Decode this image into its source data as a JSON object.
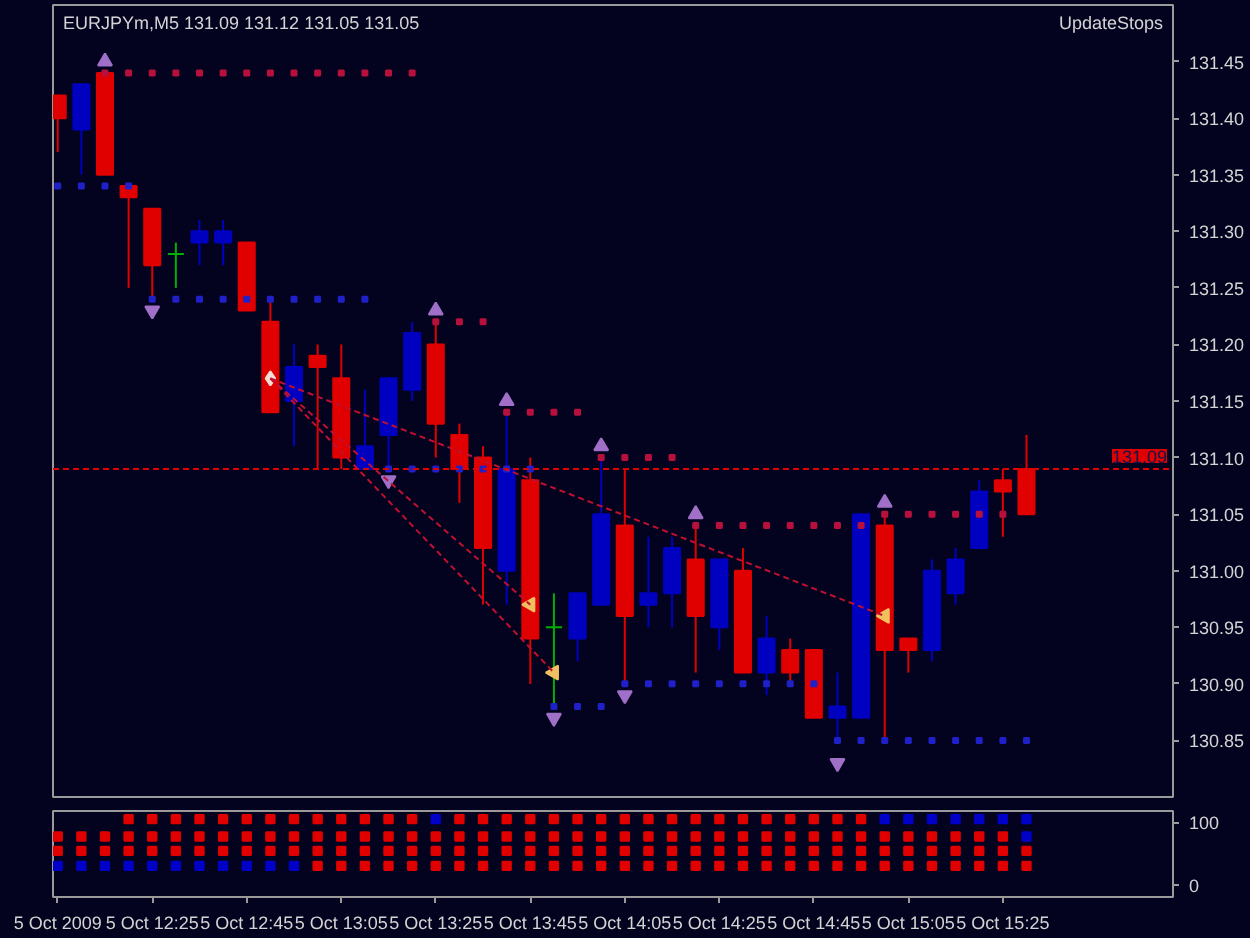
{
  "chart_data": [
    {
      "type": "candlestick",
      "title": "EURJPYm,M5  131.09 131.12 131.05 131.05",
      "x": [
        "2009-10-05T12:05",
        "2009-10-05T12:10",
        "2009-10-05T12:15",
        "2009-10-05T12:20",
        "2009-10-05T12:25",
        "2009-10-05T12:30",
        "2009-10-05T12:35",
        "2009-10-05T12:40",
        "2009-10-05T12:45",
        "2009-10-05T12:50",
        "2009-10-05T12:55",
        "2009-10-05T13:00",
        "2009-10-05T13:05",
        "2009-10-05T13:10",
        "2009-10-05T13:15",
        "2009-10-05T13:20",
        "2009-10-05T13:25",
        "2009-10-05T13:30",
        "2009-10-05T13:35",
        "2009-10-05T13:40",
        "2009-10-05T13:45",
        "2009-10-05T13:50",
        "2009-10-05T13:55",
        "2009-10-05T14:00",
        "2009-10-05T14:05",
        "2009-10-05T14:10",
        "2009-10-05T14:15",
        "2009-10-05T14:20",
        "2009-10-05T14:25",
        "2009-10-05T14:30",
        "2009-10-05T14:35",
        "2009-10-05T14:40",
        "2009-10-05T14:45",
        "2009-10-05T14:50",
        "2009-10-05T14:55",
        "2009-10-05T15:00",
        "2009-10-05T15:05",
        "2009-10-05T15:10",
        "2009-10-05T15:15",
        "2009-10-05T15:20",
        "2009-10-05T15:25",
        "2009-10-05T15:30"
      ],
      "ohlc": [
        [
          131.42,
          131.42,
          131.37,
          131.4
        ],
        [
          131.39,
          131.43,
          131.35,
          131.43
        ],
        [
          131.44,
          131.44,
          131.35,
          131.35
        ],
        [
          131.34,
          131.34,
          131.25,
          131.33
        ],
        [
          131.32,
          131.32,
          131.24,
          131.27
        ],
        [
          131.28,
          131.29,
          131.25,
          131.28
        ],
        [
          131.29,
          131.31,
          131.27,
          131.3
        ],
        [
          131.29,
          131.31,
          131.27,
          131.3
        ],
        [
          131.29,
          131.29,
          131.23,
          131.23
        ],
        [
          131.22,
          131.24,
          131.14,
          131.14
        ],
        [
          131.15,
          131.2,
          131.11,
          131.18
        ],
        [
          131.19,
          131.2,
          131.09,
          131.18
        ],
        [
          131.17,
          131.2,
          131.09,
          131.1
        ],
        [
          131.09,
          131.16,
          131.09,
          131.11
        ],
        [
          131.12,
          131.17,
          131.09,
          131.17
        ],
        [
          131.16,
          131.22,
          131.15,
          131.21
        ],
        [
          131.2,
          131.22,
          131.1,
          131.13
        ],
        [
          131.12,
          131.13,
          131.06,
          131.09
        ],
        [
          131.1,
          131.11,
          130.97,
          131.02
        ],
        [
          131.0,
          131.14,
          130.97,
          131.09
        ],
        [
          131.08,
          131.1,
          130.9,
          130.94
        ],
        [
          130.95,
          130.98,
          130.88,
          130.95
        ],
        [
          130.94,
          130.98,
          130.92,
          130.98
        ],
        [
          130.97,
          131.1,
          130.97,
          131.05
        ],
        [
          131.04,
          131.09,
          130.9,
          130.96
        ],
        [
          130.97,
          131.03,
          130.95,
          130.98
        ],
        [
          130.98,
          131.03,
          130.95,
          131.02
        ],
        [
          131.01,
          131.04,
          130.91,
          130.96
        ],
        [
          130.95,
          131.01,
          130.93,
          131.01
        ],
        [
          131.0,
          131.02,
          130.91,
          130.91
        ],
        [
          130.91,
          130.96,
          130.89,
          130.94
        ],
        [
          130.93,
          130.94,
          130.9,
          130.91
        ],
        [
          130.93,
          130.93,
          130.87,
          130.87
        ],
        [
          130.87,
          130.91,
          130.85,
          130.88
        ],
        [
          130.87,
          131.05,
          130.87,
          131.05
        ],
        [
          131.04,
          131.05,
          130.85,
          130.93
        ],
        [
          130.94,
          130.94,
          130.91,
          130.93
        ],
        [
          130.93,
          131.01,
          130.92,
          131.0
        ],
        [
          130.98,
          131.02,
          130.97,
          131.01
        ],
        [
          131.02,
          131.08,
          131.02,
          131.07
        ],
        [
          131.08,
          131.09,
          131.03,
          131.07
        ],
        [
          131.09,
          131.12,
          131.05,
          131.05
        ]
      ],
      "colors": [
        "#e00000",
        "#0000c0",
        "#e00000",
        "#e00000",
        "#e00000",
        "#00b000",
        "#0000c0",
        "#0000c0",
        "#e00000",
        "#e00000",
        "#0000c0",
        "#e00000",
        "#e00000",
        "#0000c0",
        "#0000c0",
        "#0000c0",
        "#e00000",
        "#e00000",
        "#e00000",
        "#0000c0",
        "#e00000",
        "#00b000",
        "#0000c0",
        "#0000c0",
        "#e00000",
        "#0000c0",
        "#0000c0",
        "#e00000",
        "#0000c0",
        "#e00000",
        "#0000c0",
        "#e00000",
        "#e00000",
        "#0000c0",
        "#0000c0",
        "#e00000",
        "#e00000",
        "#0000c0",
        "#0000c0",
        "#0000c0",
        "#e00000",
        "#e00000"
      ],
      "series": [
        {
          "type": "scatter",
          "marker": "square",
          "color": "#b8103c",
          "values": [
            null,
            null,
            131.44,
            131.44,
            131.44,
            131.44,
            131.44,
            131.44,
            131.44,
            131.44,
            131.44,
            131.44,
            131.44,
            131.44,
            131.44,
            131.44,
            131.22,
            131.22,
            131.22,
            131.14,
            131.14,
            131.14,
            131.14,
            131.1,
            131.1,
            131.1,
            131.1,
            131.04,
            131.04,
            131.04,
            131.04,
            131.04,
            131.04,
            131.04,
            131.04,
            131.05,
            131.05,
            131.05,
            131.05,
            131.05,
            131.05,
            null
          ]
        },
        {
          "type": "scatter",
          "marker": "square",
          "color": "#2020c8",
          "values": [
            131.34,
            131.34,
            131.34,
            131.34,
            131.24,
            131.24,
            131.24,
            131.24,
            131.24,
            131.24,
            131.24,
            131.24,
            131.24,
            131.24,
            131.09,
            131.09,
            131.09,
            131.09,
            131.09,
            131.09,
            131.09,
            130.88,
            130.88,
            130.88,
            130.9,
            130.9,
            130.9,
            130.9,
            130.9,
            130.9,
            130.9,
            130.9,
            130.9,
            130.85,
            130.85,
            130.85,
            130.85,
            130.85,
            130.85,
            130.85,
            130.85,
            130.85
          ]
        },
        {
          "type": "scatter",
          "marker": "triangle",
          "color": "#a070c8",
          "values": [
            null,
            null,
            131.45,
            null,
            null,
            null,
            null,
            null,
            null,
            null,
            null,
            null,
            null,
            null,
            null,
            null,
            131.23,
            null,
            null,
            131.15,
            null,
            null,
            null,
            131.11,
            null,
            null,
            null,
            131.05,
            null,
            null,
            null,
            null,
            null,
            null,
            null,
            131.06,
            null,
            null,
            null,
            null,
            null,
            null
          ]
        },
        {
          "type": "scatter",
          "marker": "triangle",
          "color": "#a070c8",
          "values": [
            null,
            null,
            null,
            null,
            131.23,
            null,
            null,
            null,
            null,
            null,
            null,
            null,
            null,
            null,
            131.08,
            null,
            null,
            null,
            null,
            null,
            null,
            130.87,
            null,
            null,
            130.89,
            null,
            null,
            null,
            null,
            null,
            null,
            null,
            null,
            130.83,
            null,
            null,
            null,
            null,
            null,
            null,
            null,
            null
          ]
        },
        {
          "type": "line",
          "line_style": "dashed",
          "color": "#c01030",
          "x": [
            "2009-10-05T12:50",
            "2009-10-05T13:45"
          ],
          "values": [
            131.17,
            130.97
          ]
        },
        {
          "type": "line",
          "line_style": "dashed",
          "color": "#c01030",
          "x": [
            "2009-10-05T12:50",
            "2009-10-05T13:50"
          ],
          "values": [
            131.17,
            130.91
          ]
        },
        {
          "type": "line",
          "line_style": "dashed",
          "color": "#c01030",
          "x": [
            "2009-10-05T12:50",
            "2009-10-05T15:00"
          ],
          "values": [
            131.17,
            130.96
          ]
        },
        {
          "type": "scatter",
          "marker": "diamond",
          "color": "#f4dcd4",
          "x": [
            "2009-10-05T12:50"
          ],
          "values": [
            131.17
          ]
        },
        {
          "type": "scatter",
          "marker": "triangle",
          "color": "#f0c060",
          "x": [
            "2009-10-05T13:45",
            "2009-10-05T13:50",
            "2009-10-05T15:00"
          ],
          "values": [
            130.97,
            130.91,
            130.96
          ]
        }
      ],
      "ref_lines": [
        {
          "axis": "y",
          "value": 131.09,
          "label": "131.09",
          "color": "#e00000",
          "line_style": "dashed"
        }
      ],
      "annotations": [
        "UpdateStops"
      ],
      "xlim": [
        "2009-10-05T12:04",
        "2009-10-05T16:01"
      ],
      "ylim": [
        130.8,
        131.5
      ],
      "yticks": [
        130.85,
        {
          "value": 130.9,
          "label": "130.90"
        },
        130.95,
        {
          "value": 131.0,
          "label": "131.00"
        },
        131.05,
        {
          "value": 131.1,
          "label": "131.10"
        },
        131.15,
        {
          "value": 131.2,
          "label": "131.20"
        },
        131.25,
        {
          "value": 131.3,
          "label": "131.30"
        },
        131.35,
        {
          "value": 131.4,
          "label": "131.40"
        },
        131.45
      ],
      "tick_labels": "y"
    },
    {
      "type": "scatter",
      "marker": "square",
      "x": [
        "2009-10-05T12:05",
        "2009-10-05T12:10",
        "2009-10-05T12:15",
        "2009-10-05T12:20",
        "2009-10-05T12:25",
        "2009-10-05T12:30",
        "2009-10-05T12:35",
        "2009-10-05T12:40",
        "2009-10-05T12:45",
        "2009-10-05T12:50",
        "2009-10-05T12:55",
        "2009-10-05T13:00",
        "2009-10-05T13:05",
        "2009-10-05T13:10",
        "2009-10-05T13:15",
        "2009-10-05T13:20",
        "2009-10-05T13:25",
        "2009-10-05T13:30",
        "2009-10-05T13:35",
        "2009-10-05T13:40",
        "2009-10-05T13:45",
        "2009-10-05T13:50",
        "2009-10-05T13:55",
        "2009-10-05T14:00",
        "2009-10-05T14:05",
        "2009-10-05T14:10",
        "2009-10-05T14:15",
        "2009-10-05T14:20",
        "2009-10-05T14:25",
        "2009-10-05T14:30",
        "2009-10-05T14:35",
        "2009-10-05T14:40",
        "2009-10-05T14:45",
        "2009-10-05T14:50",
        "2009-10-05T14:55",
        "2009-10-05T15:00",
        "2009-10-05T15:05",
        "2009-10-05T15:10",
        "2009-10-05T15:15",
        "2009-10-05T15:20",
        "2009-10-05T15:25",
        "2009-10-05T15:30"
      ],
      "series": [
        {
          "values": [
            null,
            null,
            null,
            105,
            105,
            105,
            105,
            105,
            105,
            105,
            105,
            105,
            105,
            105,
            105,
            105,
            105,
            105,
            105,
            105,
            105,
            105,
            105,
            105,
            105,
            105,
            105,
            105,
            105,
            105,
            105,
            105,
            105,
            105,
            105,
            105,
            105,
            105,
            105,
            105,
            105,
            105
          ],
          "colors": [
            "#e00000",
            "#e00000",
            "#e00000",
            "#e00000",
            "#e00000",
            "#e00000",
            "#e00000",
            "#e00000",
            "#e00000",
            "#e00000",
            "#e00000",
            "#e00000",
            "#e00000",
            "#e00000",
            "#e00000",
            "#e00000",
            "#0000c8",
            "#e00000",
            "#e00000",
            "#e00000",
            "#e00000",
            "#e00000",
            "#e00000",
            "#e00000",
            "#e00000",
            "#e00000",
            "#e00000",
            "#e00000",
            "#e00000",
            "#e00000",
            "#e00000",
            "#e00000",
            "#e00000",
            "#e00000",
            "#e00000",
            "#0000c8",
            "#0000c8",
            "#0000c8",
            "#0000c8",
            "#0000c8",
            "#0000c8",
            "#0000c8"
          ]
        },
        {
          "values": [
            77,
            77,
            77,
            77,
            77,
            77,
            77,
            77,
            77,
            77,
            77,
            77,
            77,
            77,
            77,
            77,
            77,
            77,
            77,
            77,
            77,
            77,
            77,
            77,
            77,
            77,
            77,
            77,
            77,
            77,
            77,
            77,
            77,
            77,
            77,
            77,
            77,
            77,
            77,
            77,
            77,
            77
          ],
          "colors": [
            "#e00000",
            "#e00000",
            "#e00000",
            "#e00000",
            "#e00000",
            "#e00000",
            "#e00000",
            "#e00000",
            "#e00000",
            "#e00000",
            "#e00000",
            "#e00000",
            "#e00000",
            "#e00000",
            "#e00000",
            "#e00000",
            "#e00000",
            "#e00000",
            "#e00000",
            "#e00000",
            "#e00000",
            "#e00000",
            "#e00000",
            "#e00000",
            "#e00000",
            "#e00000",
            "#e00000",
            "#e00000",
            "#e00000",
            "#e00000",
            "#e00000",
            "#e00000",
            "#e00000",
            "#e00000",
            "#e00000",
            "#e00000",
            "#e00000",
            "#e00000",
            "#e00000",
            "#e00000",
            "#e00000",
            "#0000c8"
          ]
        },
        {
          "values": [
            54,
            54,
            54,
            54,
            54,
            54,
            54,
            54,
            54,
            54,
            54,
            54,
            54,
            54,
            54,
            54,
            54,
            54,
            54,
            54,
            54,
            54,
            54,
            54,
            54,
            54,
            54,
            54,
            54,
            54,
            54,
            54,
            54,
            54,
            54,
            54,
            54,
            54,
            54,
            54,
            54,
            54
          ],
          "colors": [
            "#e00000",
            "#e00000",
            "#e00000",
            "#e00000",
            "#e00000",
            "#e00000",
            "#e00000",
            "#e00000",
            "#e00000",
            "#e00000",
            "#e00000",
            "#e00000",
            "#e00000",
            "#e00000",
            "#e00000",
            "#e00000",
            "#e00000",
            "#e00000",
            "#e00000",
            "#e00000",
            "#e00000",
            "#e00000",
            "#e00000",
            "#e00000",
            "#e00000",
            "#e00000",
            "#e00000",
            "#e00000",
            "#e00000",
            "#e00000",
            "#e00000",
            "#e00000",
            "#e00000",
            "#e00000",
            "#e00000",
            "#e00000",
            "#e00000",
            "#e00000",
            "#e00000",
            "#e00000",
            "#e00000",
            "#e00000"
          ]
        },
        {
          "values": [
            30,
            30,
            30,
            30,
            30,
            30,
            30,
            30,
            30,
            30,
            30,
            30,
            30,
            30,
            30,
            30,
            30,
            30,
            30,
            30,
            30,
            30,
            30,
            30,
            30,
            30,
            30,
            30,
            30,
            30,
            30,
            30,
            30,
            30,
            30,
            30,
            30,
            30,
            30,
            30,
            30,
            30
          ],
          "colors": [
            "#0000c8",
            "#0000c8",
            "#0000c8",
            "#0000c8",
            "#0000c8",
            "#0000c8",
            "#0000c8",
            "#0000c8",
            "#0000c8",
            "#0000c8",
            "#0000c8",
            "#e00000",
            "#e00000",
            "#e00000",
            "#e00000",
            "#e00000",
            "#e00000",
            "#e00000",
            "#e00000",
            "#e00000",
            "#e00000",
            "#e00000",
            "#e00000",
            "#e00000",
            "#e00000",
            "#e00000",
            "#e00000",
            "#e00000",
            "#e00000",
            "#e00000",
            "#e00000",
            "#e00000",
            "#e00000",
            "#e00000",
            "#e00000",
            "#e00000",
            "#e00000",
            "#e00000",
            "#e00000",
            "#e00000",
            "#e00000",
            "#e00000"
          ]
        }
      ],
      "xlim": [
        "2009-10-05T12:04",
        "2009-10-05T16:01"
      ],
      "ylim": [
        -20,
        118
      ],
      "yticks": [
        0,
        100
      ],
      "xticks": [
        {
          "value": "2009-10-05T12:05",
          "label": "5 Oct 2009"
        },
        {
          "value": "2009-10-05T12:25",
          "label": "5 Oct 12:25"
        },
        {
          "value": "2009-10-05T12:45",
          "label": "5 Oct 12:45"
        },
        {
          "value": "2009-10-05T13:05",
          "label": "5 Oct 13:05"
        },
        {
          "value": "2009-10-05T13:25",
          "label": "5 Oct 13:25"
        },
        {
          "value": "2009-10-05T13:45",
          "label": "5 Oct 13:45"
        },
        {
          "value": "2009-10-05T14:05",
          "label": "5 Oct 14:05"
        },
        {
          "value": "2009-10-05T14:25",
          "label": "5 Oct 14:25"
        },
        {
          "value": "2009-10-05T14:45",
          "label": "5 Oct 14:45"
        },
        {
          "value": "2009-10-05T15:05",
          "label": "5 Oct 15:05"
        },
        {
          "value": "2009-10-05T15:25",
          "label": "5 Oct 15:25"
        }
      ]
    }
  ]
}
